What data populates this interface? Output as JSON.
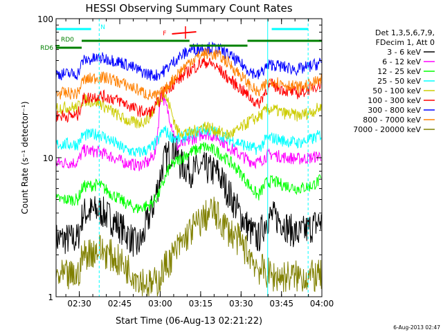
{
  "chart_data": {
    "type": "line",
    "title": "HESSI Observing Summary Count Rates",
    "xlabel": "Start Time (06-Aug-13 02:21:22)",
    "ylabel": "Count Rate (s⁻¹ detector⁻¹)",
    "yscale": "log",
    "ylim": [
      1,
      100
    ],
    "xlim_minutes": [
      0,
      98.6
    ],
    "x_ticks": [
      "02:30",
      "02:45",
      "03:00",
      "03:15",
      "03:30",
      "03:45",
      "04:00"
    ],
    "y_ticks": [
      "1",
      "10",
      "100"
    ],
    "timestamp": "6-Aug-2013 02:47",
    "legend_header": [
      "Det 1,3,5,6,7,9,",
      "FDecim 1, Att 0"
    ],
    "legend_placement": "right",
    "annotations": {
      "n_label": "N",
      "f_label": "F",
      "rd0_label": "RD0",
      "rd6_label": "RD6",
      "n_color": "#00ffff",
      "f_color": "#ff0000",
      "rd_color": "#008000"
    },
    "series": [
      {
        "name": "3 - 6 keV",
        "color": "#000000",
        "x": [
          0,
          8,
          10,
          16,
          20,
          25,
          28,
          30,
          32,
          34,
          36,
          38,
          40,
          44,
          46,
          50,
          55,
          60,
          64,
          68,
          72,
          75,
          78,
          80,
          84,
          86,
          90,
          95,
          98
        ],
        "y": [
          2.6,
          2.6,
          4.0,
          4.2,
          3.7,
          3.0,
          2.6,
          2.3,
          2.6,
          3.5,
          4.5,
          6.5,
          9.5,
          12.0,
          9.0,
          8.0,
          8.4,
          7.8,
          5.6,
          4.0,
          3.0,
          2.6,
          3.6,
          3.8,
          3.5,
          3.1,
          2.8,
          3.2,
          3.5
        ]
      },
      {
        "name": "6 - 12 keV",
        "color": "#ff00ff",
        "x": [
          0,
          8,
          10,
          16,
          20,
          25,
          30,
          34,
          37,
          39,
          42,
          45,
          50,
          55,
          60,
          64,
          68,
          72,
          75,
          78,
          80,
          84,
          90,
          95,
          98
        ],
        "y": [
          9.2,
          9.2,
          11.3,
          11.0,
          10.3,
          9.3,
          8.8,
          9.2,
          11.0,
          30.0,
          20.0,
          12.0,
          13.5,
          15.0,
          14.0,
          12.0,
          10.5,
          9.5,
          9.2,
          10.3,
          10.6,
          10.1,
          9.8,
          10.0,
          10.4
        ]
      },
      {
        "name": "12 - 25 keV",
        "color": "#00ff00",
        "x": [
          0,
          8,
          10,
          16,
          20,
          25,
          30,
          35,
          38,
          40,
          42,
          45,
          50,
          55,
          60,
          64,
          68,
          72,
          75,
          78,
          80,
          84,
          90,
          95,
          98
        ],
        "y": [
          5.0,
          5.0,
          6.2,
          6.4,
          5.6,
          4.8,
          4.3,
          4.6,
          5.4,
          6.8,
          8.5,
          9.5,
          11.0,
          12.0,
          11.0,
          9.5,
          8.0,
          6.2,
          5.3,
          6.6,
          6.8,
          6.4,
          6.0,
          6.3,
          6.9
        ]
      },
      {
        "name": "25 - 50 keV",
        "color": "#00ffff",
        "x": [
          0,
          8,
          10,
          16,
          20,
          25,
          30,
          35,
          38,
          40,
          42,
          45,
          50,
          55,
          60,
          64,
          68,
          72,
          75,
          78,
          80,
          84,
          90,
          95,
          98
        ],
        "y": [
          12.5,
          12.5,
          14.5,
          14.8,
          13.4,
          11.6,
          10.8,
          11.6,
          13.5,
          16.0,
          14.5,
          13.5,
          14.8,
          16.0,
          15.0,
          13.6,
          12.8,
          11.8,
          11.5,
          13.6,
          13.9,
          13.3,
          12.8,
          13.6,
          14.6
        ]
      },
      {
        "name": "50 - 100 keV",
        "color": "#cccc00",
        "x": [
          0,
          8,
          10,
          16,
          20,
          25,
          30,
          34,
          36,
          38,
          40,
          42,
          45,
          50,
          55,
          60,
          64,
          68,
          72,
          75,
          78,
          80,
          84,
          90,
          95,
          98
        ],
        "y": [
          23.0,
          23.0,
          26.0,
          25.0,
          22.0,
          19.0,
          17.5,
          19.0,
          21.5,
          26.0,
          29.0,
          24.0,
          15.5,
          15.0,
          17.0,
          15.5,
          14.5,
          16.0,
          18.5,
          19.5,
          22.0,
          22.5,
          21.0,
          20.0,
          21.5,
          23.0
        ]
      },
      {
        "name": "100 - 300 keV",
        "color": "#ff0000",
        "x": [
          0,
          8,
          10,
          16,
          20,
          25,
          30,
          34,
          36,
          38,
          40,
          45,
          50,
          55,
          58,
          60,
          64,
          68,
          72,
          75,
          78,
          80,
          84,
          90,
          95,
          98
        ],
        "y": [
          20.0,
          20.0,
          26.5,
          28.0,
          27.0,
          25.0,
          22.0,
          21.0,
          22.0,
          25.0,
          30.0,
          36.0,
          43.0,
          49.0,
          47.0,
          44.0,
          37.0,
          32.0,
          27.0,
          24.0,
          31.0,
          33.5,
          31.0,
          29.0,
          32.0,
          34.0
        ]
      },
      {
        "name": "300 - 800 keV",
        "color": "#0000ff",
        "x": [
          0,
          8,
          10,
          16,
          20,
          25,
          30,
          34,
          37,
          40,
          45,
          50,
          55,
          60,
          64,
          68,
          72,
          75,
          78,
          80,
          84,
          90,
          95,
          98
        ],
        "y": [
          40.0,
          40.0,
          50.0,
          52.0,
          51.0,
          48.0,
          43.0,
          40.0,
          39.0,
          42.0,
          52.0,
          60.0,
          62.0,
          61.0,
          55.0,
          48.0,
          42.0,
          39.0,
          45.0,
          47.0,
          45.0,
          43.0,
          46.0,
          48.0
        ]
      },
      {
        "name": "800 - 7000 keV",
        "color": "#ff8000",
        "x": [
          0,
          8,
          10,
          16,
          20,
          25,
          30,
          34,
          37,
          40,
          45,
          50,
          55,
          60,
          64,
          68,
          72,
          75,
          78,
          80,
          84,
          90,
          95,
          98
        ],
        "y": [
          29.0,
          29.0,
          36.0,
          38.0,
          37.0,
          34.0,
          31.0,
          28.5,
          27.5,
          30.0,
          40.0,
          50.0,
          56.0,
          55.0,
          48.0,
          40.0,
          33.0,
          29.0,
          34.0,
          36.0,
          34.0,
          32.0,
          34.0,
          36.0
        ]
      },
      {
        "name": "7000 - 20000 keV",
        "color": "#808000",
        "x": [
          0,
          8,
          10,
          16,
          20,
          25,
          30,
          35,
          38,
          40,
          45,
          50,
          55,
          58,
          60,
          64,
          68,
          72,
          75,
          78,
          80,
          84,
          90,
          95,
          98
        ],
        "y": [
          1.4,
          1.4,
          2.0,
          2.2,
          2.0,
          1.7,
          1.4,
          1.2,
          1.3,
          1.6,
          2.2,
          3.0,
          3.7,
          4.2,
          3.7,
          3.0,
          2.5,
          2.0,
          1.6,
          1.5,
          1.4,
          1.4,
          1.4,
          1.4,
          1.4
        ]
      }
    ]
  }
}
